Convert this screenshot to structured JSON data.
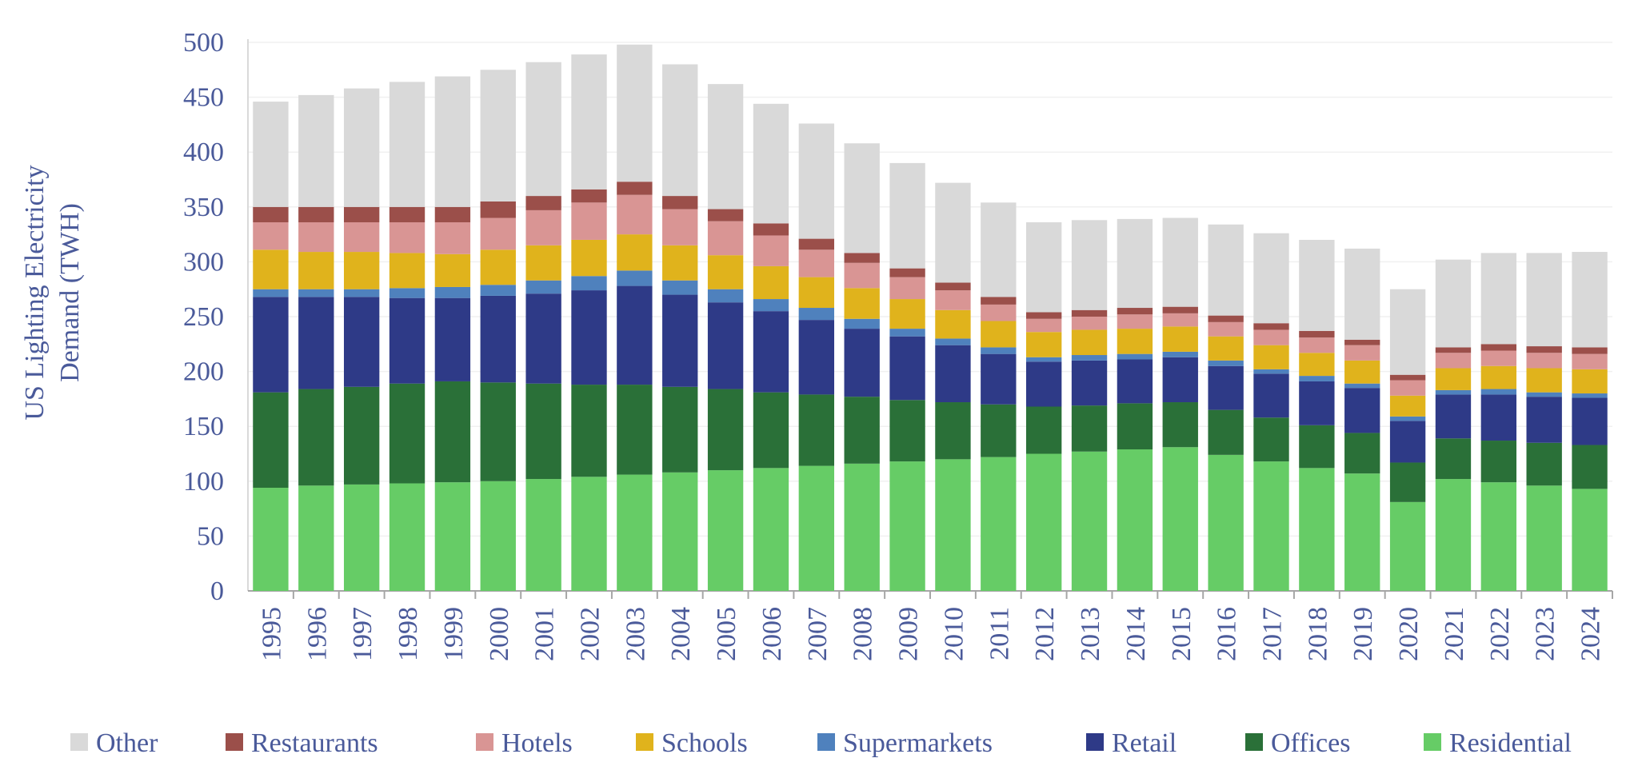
{
  "chart_data": {
    "type": "stacked_bar",
    "y_label": [
      "US Lighting Electricity",
      "Demand (TWH)"
    ],
    "categories": [
      "1995",
      "1996",
      "1997",
      "1998",
      "1999",
      "2000",
      "2001",
      "2002",
      "2003",
      "2004",
      "2005",
      "2006",
      "2007",
      "2008",
      "2009",
      "2010",
      "2011",
      "2012",
      "2013",
      "2014",
      "2015",
      "2016",
      "2017",
      "2018",
      "2019",
      "2020",
      "2021",
      "2022",
      "2023",
      "2024"
    ],
    "series": [
      {
        "name": "Residential",
        "color": "#66cc66",
        "values": [
          94,
          96,
          97,
          98,
          99,
          100,
          102,
          104,
          106,
          108,
          110,
          112,
          114,
          116,
          118,
          120,
          122,
          125,
          127,
          129,
          131,
          124,
          118,
          112,
          107,
          81,
          102,
          99,
          96,
          93
        ]
      },
      {
        "name": "Offices",
        "color": "#2a7038",
        "values": [
          87,
          88,
          89,
          91,
          92,
          90,
          87,
          84,
          82,
          78,
          74,
          69,
          65,
          61,
          56,
          52,
          48,
          43,
          42,
          42,
          41,
          41,
          40,
          39,
          37,
          36,
          37,
          38,
          39,
          40
        ]
      },
      {
        "name": "Retail",
        "color": "#2e3a87",
        "values": [
          87,
          84,
          82,
          78,
          76,
          79,
          82,
          86,
          90,
          84,
          79,
          74,
          68,
          62,
          58,
          52,
          46,
          41,
          41,
          40,
          41,
          40,
          40,
          40,
          41,
          38,
          40,
          42,
          42,
          43
        ]
      },
      {
        "name": "Supermarkets",
        "color": "#4f81bd",
        "values": [
          7,
          7,
          7,
          9,
          10,
          10,
          12,
          13,
          14,
          13,
          12,
          11,
          11,
          9,
          7,
          6,
          6,
          4,
          5,
          5,
          5,
          5,
          4,
          5,
          4,
          4,
          4,
          5,
          4,
          4
        ]
      },
      {
        "name": "Schools",
        "color": "#e0b31c",
        "values": [
          36,
          34,
          34,
          32,
          30,
          32,
          32,
          33,
          33,
          32,
          31,
          30,
          28,
          28,
          27,
          26,
          24,
          23,
          23,
          23,
          23,
          22,
          22,
          21,
          21,
          19,
          20,
          21,
          22,
          22
        ]
      },
      {
        "name": "Hotels",
        "color": "#d99594",
        "values": [
          25,
          27,
          27,
          28,
          29,
          29,
          32,
          34,
          36,
          33,
          31,
          28,
          25,
          23,
          20,
          18,
          15,
          12,
          12,
          13,
          12,
          13,
          14,
          14,
          14,
          14,
          14,
          14,
          14,
          14
        ]
      },
      {
        "name": "Restaurants",
        "color": "#9b4f4a",
        "values": [
          14,
          14,
          14,
          14,
          14,
          15,
          13,
          12,
          12,
          12,
          11,
          11,
          10,
          9,
          8,
          7,
          7,
          6,
          6,
          6,
          6,
          6,
          6,
          6,
          5,
          5,
          5,
          6,
          6,
          6
        ]
      },
      {
        "name": "Other",
        "color": "#d9d9d9",
        "values": [
          96,
          102,
          108,
          114,
          119,
          120,
          122,
          123,
          125,
          120,
          114,
          109,
          105,
          100,
          96,
          91,
          86,
          82,
          82,
          81,
          81,
          83,
          82,
          83,
          83,
          78,
          80,
          83,
          85,
          87
        ]
      }
    ],
    "ylim": [
      0,
      500
    ],
    "yticks": [
      0,
      50,
      100,
      150,
      200,
      250,
      300,
      350,
      400,
      450,
      500
    ],
    "grid": true
  }
}
